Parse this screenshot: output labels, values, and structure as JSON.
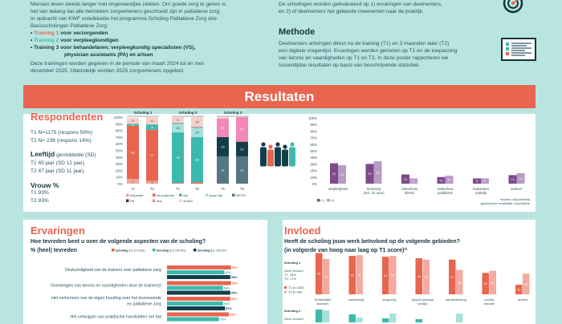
{
  "intro": {
    "line0": "Mensen leven steeds langer met ongeneeslijke ziekten. Om goede zorg te geven is",
    "line1": "het van belang dat alle betrokken zorgverleners geschoold zijn in palliatieve zorg.",
    "line2": "In opdracht van KWF ontwikkelde het programma Scholing Palliatieve Zorg drie",
    "line3": "Basisscholingen Palliatieve Zorg:",
    "t1a": "Training 1",
    "t1b": " voor verzorgenden",
    "t2a": "Training 2",
    "t2b": " voor verpleegkundigen",
    "t3a": "Training 3 voor behandelaren; verpleegkundig specialisten (VS),",
    "t3b": "physician assistants (PA) en artsen",
    "p2a": "Deze trainingen worden gegeven in de periode van maart 2024 tot en met",
    "p2b": "december 2025. Uiteindelijk worden 3525 zorgverleners opgeleid."
  },
  "doel": {
    "line0": "De scholingen worden geëvalueerd op 1) ervaringen van deelnemers,",
    "line1": "en 2) of deelnemers het geleerde meenemen naar de praktijk."
  },
  "methode": {
    "title": "Methode",
    "lines": [
      "Deelnemers ontvingen direct na de training (T1) en 3 maanden later (T2)",
      "een digitale vragenlijst. Ervaringen werden gemeten op T1 en de toepassing",
      "van kennis en vaardigheden op T1 en T2. In deze poster rapporteren we",
      "tussentijdse resultaten op basis van beschrijvende statistiek."
    ]
  },
  "banner": "Resultaten",
  "respondenten": {
    "title": "Respondenten",
    "t1": "T1   N=1175 (respons 59%)",
    "t2": "T2  N= 238 (respons 14%)",
    "leeftijd": "Leeftijd",
    "leeftijd_sub": "gemiddelde (SD)",
    "l1": "T1 45 jaar (SD 12 jaar)",
    "l2": "T2 47 jaar (SD 11 jaar)",
    "vrouw": "Vrouw %",
    "v1": "T1 93%",
    "v2": "T2 93%"
  },
  "colors": {
    "helpende": "#f2a59a",
    "verzorgende": "#e8654f",
    "vpk": "#3cb9ad",
    "gespvpk": "#a8e0da",
    "npvs": "#567682",
    "pa": "#133f4a",
    "arts": "#f387b6",
    "anders": "#f8d1cc",
    "t1": "#7d4a8c",
    "t2": "#b99ac6",
    "inv1": "#e8654f",
    "inv2": "#f4aaa0"
  },
  "chart_data": [
    {
      "type": "bar",
      "stacked": true,
      "title": "Beroep per scholing",
      "ylim": [
        0,
        100
      ],
      "yticks": [
        "0%",
        "10%",
        "20%",
        "30%",
        "40%",
        "50%",
        "60%",
        "70%",
        "80%",
        "90%",
        "100%"
      ],
      "groups": [
        {
          "name": "Scholing 1",
          "bars": [
            {
              "label": "T1",
              "segments": [
                [
                  "helpende",
                  7
                ],
                [
                  "verzorgende",
                  80
                ],
                [
                  "vpk",
                  3
                ],
                [
                  "anders",
                  9
                ]
              ]
            },
            {
              "label": "T2",
              "segments": [
                [
                  "helpende",
                  4
                ],
                [
                  "verzorgende",
                  77
                ],
                [
                  "vpk",
                  8
                ],
                [
                  "anders",
                  11
                ]
              ]
            }
          ]
        },
        {
          "name": "Scholing 2",
          "bars": [
            {
              "label": "T1",
              "segments": [
                [
                  "verzorgende",
                  1
                ],
                [
                  "vpk",
                  76
                ],
                [
                  "gespvpk",
                  13
                ],
                [
                  "npvs",
                  1
                ],
                [
                  "anders",
                  9
                ]
              ]
            },
            {
              "label": "T2",
              "segments": [
                [
                  "verzorgende",
                  2
                ],
                [
                  "vpk",
                  68
                ],
                [
                  "gespvpk",
                  14
                ],
                [
                  "npvs",
                  1
                ],
                [
                  "anders",
                  15
                ]
              ]
            }
          ]
        },
        {
          "name": "Scholing 3",
          "bars": [
            {
              "label": "T1",
              "segments": [
                [
                  "npvs",
                  41
                ],
                [
                  "pa",
                  29
                ],
                [
                  "arts",
                  28
                ],
                [
                  "anders",
                  2
                ]
              ]
            },
            {
              "label": "T2",
              "segments": [
                [
                  "npvs",
                  41
                ],
                [
                  "pa",
                  22
                ],
                [
                  "arts",
                  37
                ]
              ]
            }
          ]
        }
      ],
      "legend": [
        [
          "helpende",
          "helpende"
        ],
        [
          "verzorgende",
          "verzorgende"
        ],
        [
          "vpk",
          "vpk"
        ],
        [
          "gespvpk",
          "gesp vpk"
        ],
        [
          "npvs",
          "NP/VS"
        ],
        [
          "pa",
          "PA"
        ],
        [
          "arts",
          "arts"
        ],
        [
          "anders",
          "anders"
        ]
      ]
    },
    {
      "type": "bar",
      "title": "Werkplek",
      "ylim": [
        0,
        100
      ],
      "yticks": [
        "0%",
        "10%",
        "20%",
        "30%",
        "40%",
        "50%",
        "60%",
        "70%",
        "80%",
        "90%",
        "100%"
      ],
      "categories": [
        [
          "verpleeghuis",
          ""
        ],
        [
          "thuiszorg",
          "(incl. 24 uurs)"
        ],
        [
          "ziekenhuis",
          "kliniek"
        ],
        [
          "ziekenhuis",
          "polikliniek"
        ],
        [
          "huisartsen",
          "praktijk"
        ],
        [
          "anders*",
          ""
        ]
      ],
      "series": [
        {
          "name": "T1",
          "values": [
            31,
            30,
            14,
            10,
            8,
            13
          ]
        },
        {
          "name": "T2",
          "values": [
            28,
            34,
            8,
            12,
            8,
            16
          ]
        }
      ],
      "note": [
        "*anders: bijvoorbeeld",
        "geriatrische revalidatie, psychiatrie"
      ]
    },
    {
      "type": "bar",
      "orientation": "horizontal",
      "title": "Hoe tevreden bent u over de volgende aspecten van de scholing?",
      "subtitle": "% (heel) tevreden",
      "legend": [
        [
          "Scholing 1",
          "(n 279-281)"
        ],
        [
          "Scholing 2",
          "(n 505-510)"
        ],
        [
          "Scholing 3",
          "(n 305-307)"
        ]
      ],
      "categories": [
        [
          "Deskundigheid van de trainers over palliatieve zorg"
        ],
        [
          "Overdragen van kennis en vaardigheden door de trainer(s)"
        ],
        [
          "Het verkennen van de eigen houding over het levenseinde",
          "en palliatieve zorg"
        ],
        [
          "Het verkrijgen van praktische handvatten om het"
        ]
      ],
      "series": [
        {
          "name": "Scholing 1",
          "values": [
            96,
            96,
            95,
            93
          ]
        },
        {
          "name": "Scholing 2",
          "values": [
            86,
            84,
            84,
            78
          ]
        },
        {
          "name": "Scholing 3",
          "values": [
            95,
            95,
            87,
            null
          ]
        }
      ],
      "xlim": [
        0,
        100
      ]
    },
    {
      "type": "bar",
      "title": "Heeft de scholing jouw werk beïnvloed op de volgende gebieden?",
      "subtitle": "(in volgorde van hoog naar laag op T1 score)^",
      "group": "Scholing 1",
      "geen": [
        "Geen invloed",
        "T1: 18%",
        "T2: 17%"
      ],
      "legend": [
        "T1  (n=268)",
        "T2 (n=60)"
      ],
      "categories": [
        [
          "lichamelijke",
          "klachten"
        ],
        [
          "mantelzorg",
          ""
        ],
        [
          "zingeving",
          ""
        ],
        [
          "(psycho)sociaal",
          "welzijn"
        ],
        [
          "samenwerking",
          ""
        ],
        [
          "sociale",
          "situatie"
        ],
        [
          "anders",
          ""
        ]
      ],
      "series": [
        {
          "name": "T1",
          "values": [
            56,
            52,
            51,
            49,
            47,
            29,
            13
          ]
        },
        {
          "name": "T2",
          "values": [
            48,
            53,
            52,
            47,
            33,
            32,
            28
          ]
        }
      ],
      "group2": "Scholing 2",
      "geen2": "Geen invloed"
    }
  ]
}
